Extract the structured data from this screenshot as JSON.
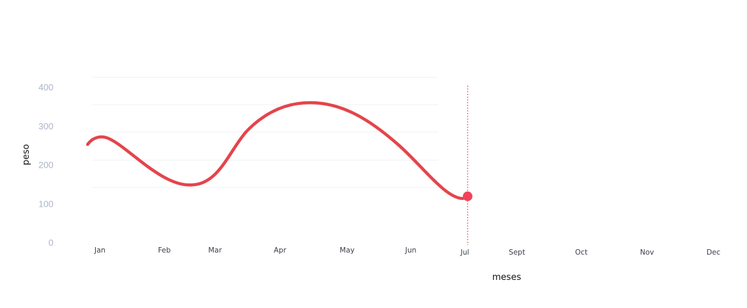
{
  "chart_data": {
    "type": "line",
    "title": "",
    "xlabel": "meses",
    "ylabel": "peso",
    "ylim": [
      0,
      400
    ],
    "yticks": [
      0,
      100,
      200,
      300,
      400
    ],
    "grid": true,
    "categories": [
      "Jan",
      "Feb",
      "Mar",
      "Apr",
      "May",
      "Jun",
      "Jul",
      "Sept",
      "Oct",
      "Nov",
      "Dec"
    ],
    "series": [
      {
        "color": "#e5444b",
        "points": [
          {
            "x": "Jan",
            "y": 268
          },
          {
            "x": "Feb",
            "y": 178
          },
          {
            "x": "Mar",
            "y": 158
          },
          {
            "x": "Apr",
            "y": 330
          },
          {
            "x": "May",
            "y": 342
          },
          {
            "x": "Jun",
            "y": 220
          },
          {
            "x": "Jul",
            "y": 122
          }
        ]
      }
    ],
    "highlight": {
      "x": "Jul",
      "y": 122,
      "color": "#f0435a"
    }
  }
}
